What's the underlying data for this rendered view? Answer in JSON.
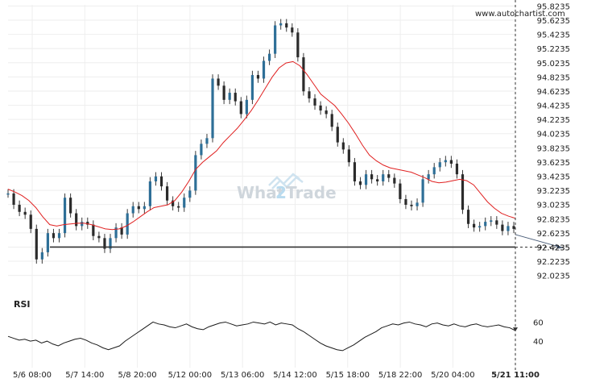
{
  "header": {
    "source": "www.autochartist.com"
  },
  "watermark": {
    "text_a": "What",
    "text_b": "2",
    "text_c": "Trade"
  },
  "rsi_panel": {
    "label": "RSI",
    "ticks": [
      "60",
      "40"
    ]
  },
  "chart_data": [
    {
      "type": "candlestick",
      "title": "",
      "y_ticks": [
        "95.8235",
        "95.6235",
        "95.4235",
        "95.2235",
        "95.0235",
        "94.8235",
        "94.6235",
        "94.4235",
        "94.2235",
        "94.0235",
        "93.8235",
        "93.6235",
        "93.4235",
        "93.2235",
        "93.0235",
        "92.8235",
        "92.6235",
        "92.4235",
        "92.2235",
        "92.0235"
      ],
      "y_tick_values": [
        95.8235,
        95.6235,
        95.4235,
        95.2235,
        95.0235,
        94.8235,
        94.6235,
        94.4235,
        94.2235,
        94.0235,
        93.8235,
        93.6235,
        93.4235,
        93.2235,
        93.0235,
        92.8235,
        92.6235,
        92.4235,
        92.2235,
        92.0235
      ],
      "ylim": [
        91.86,
        95.84
      ],
      "x_ticks": [
        "5/6 08:00",
        "5/7 14:00",
        "5/8 20:00",
        "5/12 00:00",
        "5/13 06:00",
        "5/14 12:00",
        "5/15 18:00",
        "5/18 22:00",
        "5/20 04:00",
        "5/21 11:00"
      ],
      "last_x_tick_bold": true,
      "support_level": 92.4235,
      "support_label": "92.4235",
      "close_series": [
        93.18,
        93.02,
        92.92,
        92.88,
        92.68,
        92.25,
        92.35,
        92.62,
        92.55,
        92.62,
        93.12,
        92.9,
        92.72,
        92.78,
        92.74,
        92.58,
        92.55,
        92.4,
        92.55,
        92.7,
        92.6,
        92.9,
        93.0,
        92.96,
        93.0,
        93.35,
        93.42,
        93.28,
        93.08,
        93.0,
        92.98,
        93.12,
        93.22,
        93.72,
        93.88,
        93.96,
        94.8,
        94.7,
        94.5,
        94.6,
        94.48,
        94.3,
        94.5,
        94.85,
        94.8,
        95.05,
        95.15,
        95.55,
        95.58,
        95.52,
        95.45,
        95.1,
        94.62,
        94.52,
        94.42,
        94.35,
        94.3,
        94.12,
        93.9,
        93.8,
        93.62,
        93.35,
        93.3,
        93.45,
        93.38,
        93.35,
        93.45,
        93.4,
        93.32,
        93.1,
        93.02,
        93.0,
        93.05,
        93.38,
        93.45,
        93.55,
        93.62,
        93.65,
        93.6,
        93.45,
        92.95,
        92.75,
        92.7,
        92.72,
        92.78,
        92.8,
        92.74,
        92.65,
        92.72,
        92.68
      ],
      "moving_average": [
        93.24,
        93.2,
        93.15,
        93.08,
        92.98,
        92.85,
        92.74,
        92.72,
        92.74,
        92.75,
        92.76,
        92.76,
        92.74,
        92.71,
        92.68,
        92.67,
        92.68,
        92.72,
        92.78,
        92.85,
        92.92,
        92.98,
        93.0,
        93.02,
        93.08,
        93.2,
        93.35,
        93.52,
        93.62,
        93.7,
        93.78,
        93.9,
        94.0,
        94.1,
        94.22,
        94.35,
        94.5,
        94.66,
        94.82,
        94.95,
        95.02,
        95.04,
        94.98,
        94.86,
        94.72,
        94.58,
        94.5,
        94.42,
        94.3,
        94.17,
        94.02,
        93.86,
        93.72,
        93.64,
        93.58,
        93.54,
        93.52,
        93.5,
        93.48,
        93.44,
        93.4,
        93.35,
        93.33,
        93.34,
        93.36,
        93.38,
        93.36,
        93.3,
        93.18,
        93.06,
        92.97,
        92.9,
        92.86,
        92.83
      ]
    },
    {
      "type": "line",
      "title": "RSI",
      "y_ticks": [
        "60",
        "40"
      ],
      "y_tick_values": [
        60,
        40
      ],
      "ylim": [
        24,
        68
      ],
      "values": [
        45,
        43,
        41,
        42,
        40,
        41,
        38,
        40,
        37,
        35,
        38,
        40,
        42,
        43,
        41,
        38,
        36,
        33,
        31,
        33,
        35,
        40,
        44,
        48,
        52,
        56,
        60,
        58,
        57,
        55,
        54,
        56,
        58,
        55,
        53,
        52,
        55,
        57,
        59,
        60,
        58,
        56,
        57,
        58,
        60,
        59,
        58,
        60,
        57,
        59,
        58,
        57,
        53,
        50,
        46,
        42,
        38,
        35,
        33,
        31,
        30,
        33,
        36,
        40,
        44,
        47,
        50,
        54,
        56,
        58,
        57,
        59,
        60,
        58,
        57,
        55,
        58,
        59,
        57,
        56,
        58,
        56,
        55,
        57,
        58,
        56,
        55,
        56,
        57,
        55,
        54,
        51
      ]
    }
  ]
}
